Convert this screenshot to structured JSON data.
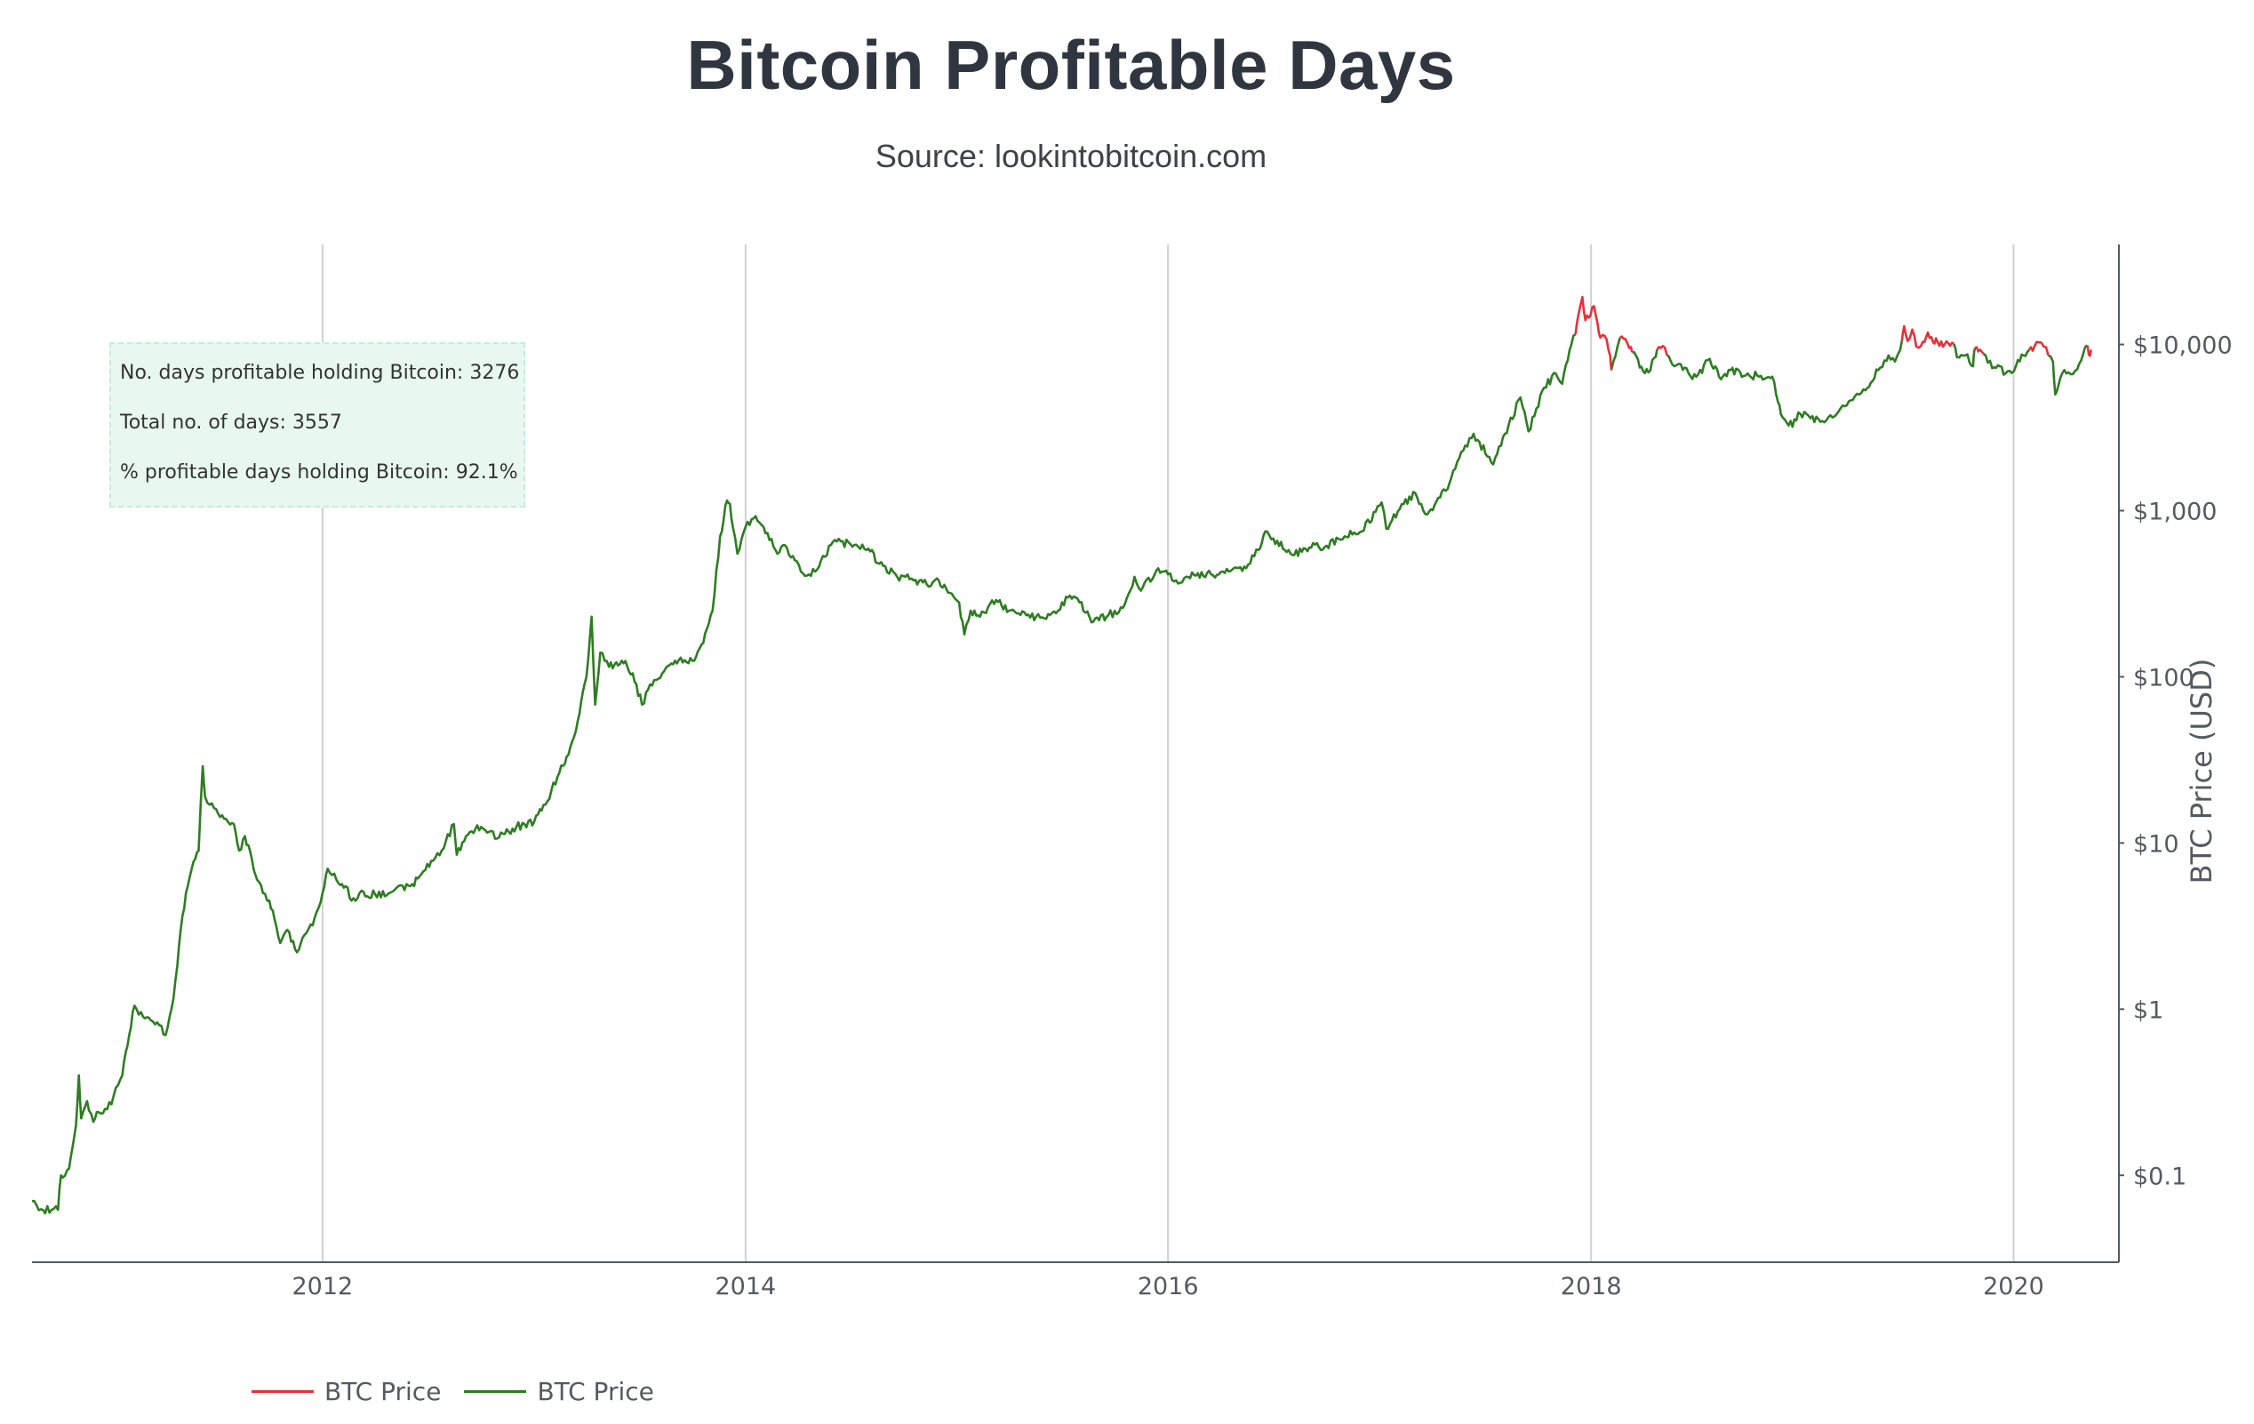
{
  "title": "Bitcoin Profitable Days",
  "subtitle": "Source: lookintobitcoin.com",
  "stats": {
    "line1": "No. days profitable holding Bitcoin: 3276",
    "line2": "Total no. of days: 3557",
    "line3": "% profitable days holding Bitcoin: 92.1%"
  },
  "legend": [
    {
      "label": "BTC Price",
      "color": "#e8303a"
    },
    {
      "label": "BTC Price",
      "color": "#2e7d22"
    }
  ],
  "colors": {
    "profitable": "#2e7d22",
    "unprofitable": "#e8303a",
    "grid": "#d0d0d0",
    "axis": "#555a60",
    "stats_background": "#e8f8f0"
  },
  "chart_data": {
    "type": "line",
    "title": "Bitcoin Profitable Days",
    "subtitle": "Source: lookintobitcoin.com",
    "xlabel": "",
    "ylabel": "BTC Price (USD)",
    "y_scale": "log",
    "y_side": "right",
    "xlim": [
      "2010-08-17",
      "2020-07-01"
    ],
    "ylim": [
      0.03,
      40000
    ],
    "x_ticks": [
      "2012",
      "2014",
      "2016",
      "2018",
      "2020"
    ],
    "x_tick_dates": [
      "2012-01-01",
      "2014-01-01",
      "2016-01-01",
      "2018-01-01",
      "2020-01-01"
    ],
    "y_ticks": [
      0.1,
      1,
      10,
      100,
      1000,
      10000
    ],
    "y_tick_labels": [
      "$0.1",
      "$1",
      "$10",
      "$100",
      "$1,000",
      "$10,000"
    ],
    "grid": "vertical",
    "legend_position": "bottom-left",
    "series": [
      {
        "name": "BTC Price",
        "color": "#e8303a",
        "segments": [
          [
            [
              "2017-12-05",
              11500
            ],
            [
              "2017-12-10",
              15000
            ],
            [
              "2017-12-17",
              19300
            ],
            [
              "2017-12-22",
              14000
            ],
            [
              "2017-12-28",
              14500
            ],
            [
              "2018-01-06",
              17000
            ],
            [
              "2018-01-12",
              13500
            ],
            [
              "2018-01-17",
              11000
            ],
            [
              "2018-01-25",
              11200
            ],
            [
              "2018-02-03",
              8500
            ],
            [
              "2018-02-05",
              7000
            ]
          ],
          [
            [
              "2018-02-20",
              11000
            ],
            [
              "2018-03-01",
              10800
            ],
            [
              "2018-03-08",
              9500
            ],
            [
              "2018-03-13",
              9000
            ]
          ],
          [
            [
              "2018-04-25",
              9300
            ],
            [
              "2018-05-05",
              9800
            ],
            [
              "2018-05-12",
              8600
            ]
          ],
          [
            [
              "2019-06-22",
              10500
            ],
            [
              "2019-06-26",
              12900
            ],
            [
              "2019-07-02",
              10500
            ],
            [
              "2019-07-10",
              12300
            ],
            [
              "2019-07-17",
              9700
            ],
            [
              "2019-07-25",
              9800
            ],
            [
              "2019-08-06",
              11800
            ],
            [
              "2019-08-15",
              10300
            ],
            [
              "2019-08-20",
              10900
            ],
            [
              "2019-09-01",
              9700
            ],
            [
              "2019-09-10",
              10200
            ],
            [
              "2019-09-20",
              10100
            ]
          ],
          [
            [
              "2019-10-26",
              9500
            ],
            [
              "2019-11-04",
              9300
            ],
            [
              "2019-11-10",
              8800
            ]
          ],
          [
            [
              "2020-01-28",
              9300
            ],
            [
              "2020-02-06",
              9700
            ],
            [
              "2020-02-14",
              10300
            ],
            [
              "2020-02-22",
              9700
            ],
            [
              "2020-03-01",
              8600
            ]
          ],
          [
            [
              "2020-05-07",
              9900
            ],
            [
              "2020-05-10",
              8700
            ],
            [
              "2020-05-14",
              9300
            ]
          ]
        ]
      },
      {
        "name": "BTC Price",
        "color": "#2e7d22",
        "points": [
          [
            "2010-08-17",
            0.07
          ],
          [
            "2010-08-25",
            0.066
          ],
          [
            "2010-09-05",
            0.062
          ],
          [
            "2010-09-20",
            0.062
          ],
          [
            "2010-10-01",
            0.062
          ],
          [
            "2010-10-06",
            0.1
          ],
          [
            "2010-10-20",
            0.11
          ],
          [
            "2010-11-01",
            0.2
          ],
          [
            "2010-11-06",
            0.4
          ],
          [
            "2010-11-10",
            0.22
          ],
          [
            "2010-11-20",
            0.28
          ],
          [
            "2010-12-01",
            0.21
          ],
          [
            "2010-12-10",
            0.24
          ],
          [
            "2010-12-25",
            0.25
          ],
          [
            "2011-01-05",
            0.3
          ],
          [
            "2011-01-20",
            0.4
          ],
          [
            "2011-02-01",
            0.7
          ],
          [
            "2011-02-10",
            1.05
          ],
          [
            "2011-02-25",
            0.9
          ],
          [
            "2011-03-10",
            0.86
          ],
          [
            "2011-03-25",
            0.8
          ],
          [
            "2011-04-05",
            0.7
          ],
          [
            "2011-04-15",
            1.0
          ],
          [
            "2011-04-25",
            1.8
          ],
          [
            "2011-05-01",
            3.0
          ],
          [
            "2011-05-10",
            5.0
          ],
          [
            "2011-05-20",
            7.0
          ],
          [
            "2011-06-01",
            9.0
          ],
          [
            "2011-06-08",
            29.0
          ],
          [
            "2011-06-12",
            19.0
          ],
          [
            "2011-06-20",
            17.0
          ],
          [
            "2011-07-01",
            16.0
          ],
          [
            "2011-07-15",
            14.0
          ],
          [
            "2011-08-01",
            13.0
          ],
          [
            "2011-08-10",
            9.0
          ],
          [
            "2011-08-20",
            11.0
          ],
          [
            "2011-09-01",
            8.0
          ],
          [
            "2011-09-10",
            6.0
          ],
          [
            "2011-09-20",
            5.0
          ],
          [
            "2011-10-01",
            4.5
          ],
          [
            "2011-10-10",
            3.5
          ],
          [
            "2011-10-20",
            2.5
          ],
          [
            "2011-11-01",
            3.0
          ],
          [
            "2011-11-18",
            2.2
          ],
          [
            "2011-12-01",
            2.8
          ],
          [
            "2011-12-15",
            3.2
          ],
          [
            "2012-01-01",
            5.0
          ],
          [
            "2012-01-10",
            7.0
          ],
          [
            "2012-01-25",
            6.0
          ],
          [
            "2012-02-10",
            5.5
          ],
          [
            "2012-02-20",
            4.5
          ],
          [
            "2012-03-05",
            5.0
          ],
          [
            "2012-04-01",
            4.9
          ],
          [
            "2012-05-01",
            5.1
          ],
          [
            "2012-06-01",
            5.5
          ],
          [
            "2012-06-20",
            6.5
          ],
          [
            "2012-07-10",
            7.8
          ],
          [
            "2012-07-25",
            9.0
          ],
          [
            "2012-08-15",
            13.0
          ],
          [
            "2012-08-20",
            8.5
          ],
          [
            "2012-09-05",
            11.0
          ],
          [
            "2012-10-01",
            12.5
          ],
          [
            "2012-11-01",
            10.8
          ],
          [
            "2012-12-01",
            12.5
          ],
          [
            "2013-01-01",
            13.5
          ],
          [
            "2013-01-20",
            17.0
          ],
          [
            "2013-02-10",
            25.0
          ],
          [
            "2013-03-01",
            34.0
          ],
          [
            "2013-03-20",
            60.0
          ],
          [
            "2013-04-01",
            100.0
          ],
          [
            "2013-04-10",
            230.0
          ],
          [
            "2013-04-16",
            68.0
          ],
          [
            "2013-04-25",
            140.0
          ],
          [
            "2013-05-10",
            115.0
          ],
          [
            "2013-06-01",
            125.0
          ],
          [
            "2013-06-20",
            105.0
          ],
          [
            "2013-07-06",
            68.0
          ],
          [
            "2013-07-20",
            90.0
          ],
          [
            "2013-08-10",
            105.0
          ],
          [
            "2013-09-01",
            125.0
          ],
          [
            "2013-10-01",
            125.0
          ],
          [
            "2013-10-20",
            160.0
          ],
          [
            "2013-11-05",
            250.0
          ],
          [
            "2013-11-18",
            700.0
          ],
          [
            "2013-11-30",
            1150.0
          ],
          [
            "2013-12-05",
            1100.0
          ],
          [
            "2013-12-10",
            800.0
          ],
          [
            "2013-12-18",
            550.0
          ],
          [
            "2014-01-01",
            800.0
          ],
          [
            "2014-01-15",
            900.0
          ],
          [
            "2014-02-01",
            800.0
          ],
          [
            "2014-02-25",
            550.0
          ],
          [
            "2014-03-10",
            620.0
          ],
          [
            "2014-04-10",
            420.0
          ],
          [
            "2014-05-01",
            430.0
          ],
          [
            "2014-06-01",
            650.0
          ],
          [
            "2014-07-01",
            630.0
          ],
          [
            "2014-08-01",
            590.0
          ],
          [
            "2014-08-20",
            480.0
          ],
          [
            "2014-09-20",
            400.0
          ],
          [
            "2014-10-15",
            390.0
          ],
          [
            "2014-11-10",
            360.0
          ],
          [
            "2014-12-01",
            380.0
          ],
          [
            "2014-12-20",
            320.0
          ],
          [
            "2015-01-05",
            280.0
          ],
          [
            "2015-01-14",
            180.0
          ],
          [
            "2015-01-25",
            250.0
          ],
          [
            "2015-02-10",
            230.0
          ],
          [
            "2015-03-10",
            290.0
          ],
          [
            "2015-04-01",
            250.0
          ],
          [
            "2015-05-01",
            235.0
          ],
          [
            "2015-06-01",
            225.0
          ],
          [
            "2015-06-25",
            250.0
          ],
          [
            "2015-07-12",
            300.0
          ],
          [
            "2015-08-01",
            280.0
          ],
          [
            "2015-08-25",
            215.0
          ],
          [
            "2015-09-20",
            235.0
          ],
          [
            "2015-10-15",
            260.0
          ],
          [
            "2015-11-04",
            400.0
          ],
          [
            "2015-11-15",
            330.0
          ],
          [
            "2015-12-15",
            450.0
          ],
          [
            "2016-01-15",
            380.0
          ],
          [
            "2016-02-15",
            410.0
          ],
          [
            "2016-03-15",
            415.0
          ],
          [
            "2016-04-15",
            430.0
          ],
          [
            "2016-05-15",
            450.0
          ],
          [
            "2016-06-05",
            580.0
          ],
          [
            "2016-06-17",
            750.0
          ],
          [
            "2016-07-01",
            680.0
          ],
          [
            "2016-08-03",
            540.0
          ],
          [
            "2016-09-01",
            600.0
          ],
          [
            "2016-10-01",
            615.0
          ],
          [
            "2016-11-01",
            700.0
          ],
          [
            "2016-12-01",
            750.0
          ],
          [
            "2017-01-04",
            1120.0
          ],
          [
            "2017-01-12",
            780.0
          ],
          [
            "2017-02-01",
            990.0
          ],
          [
            "2017-03-03",
            1280.0
          ],
          [
            "2017-03-24",
            950.0
          ],
          [
            "2017-04-15",
            1200.0
          ],
          [
            "2017-05-01",
            1450.0
          ],
          [
            "2017-05-25",
            2300.0
          ],
          [
            "2017-06-12",
            2900.0
          ],
          [
            "2017-07-16",
            1900.0
          ],
          [
            "2017-08-05",
            2900.0
          ],
          [
            "2017-09-01",
            4800.0
          ],
          [
            "2017-09-15",
            3000.0
          ],
          [
            "2017-10-12",
            5500.0
          ],
          [
            "2017-11-01",
            6700.0
          ],
          [
            "2017-11-12",
            5800.0
          ],
          [
            "2017-11-28",
            10000.0
          ],
          [
            "2017-12-05",
            11500.0
          ]
        ],
        "segments_after_peak": [
          [
            [
              "2018-02-05",
              7000
            ],
            [
              "2018-02-12",
              8500
            ],
            [
              "2018-02-20",
              11000
            ]
          ],
          [
            [
              "2018-03-13",
              9000
            ],
            [
              "2018-03-20",
              8500
            ],
            [
              "2018-04-01",
              6900
            ],
            [
              "2018-04-10",
              6800
            ],
            [
              "2018-04-20",
              8300
            ],
            [
              "2018-04-25",
              9300
            ]
          ],
          [
            [
              "2018-05-12",
              8600
            ],
            [
              "2018-05-25",
              7400
            ],
            [
              "2018-06-05",
              7600
            ],
            [
              "2018-06-25",
              6200
            ],
            [
              "2018-07-05",
              6600
            ],
            [
              "2018-07-25",
              8200
            ],
            [
              "2018-08-10",
              6400
            ],
            [
              "2018-08-30",
              7000
            ],
            [
              "2018-09-25",
              6500
            ],
            [
              "2018-10-15",
              6500
            ],
            [
              "2018-11-10",
              6400
            ],
            [
              "2018-11-20",
              4500
            ],
            [
              "2018-11-25",
              3800
            ],
            [
              "2018-12-15",
              3200
            ],
            [
              "2018-12-25",
              3900
            ],
            [
              "2019-01-15",
              3600
            ],
            [
              "2019-02-08",
              3400
            ],
            [
              "2019-03-01",
              3800
            ],
            [
              "2019-04-02",
              4900
            ],
            [
              "2019-04-20",
              5300
            ],
            [
              "2019-05-12",
              7000
            ],
            [
              "2019-05-30",
              8600
            ],
            [
              "2019-06-10",
              7900
            ],
            [
              "2019-06-22",
              10500
            ]
          ],
          [
            [
              "2019-09-20",
              10100
            ],
            [
              "2019-09-25",
              8400
            ],
            [
              "2019-10-10",
              8600
            ],
            [
              "2019-10-23",
              7400
            ],
            [
              "2019-10-26",
              9500
            ]
          ],
          [
            [
              "2019-11-10",
              8800
            ],
            [
              "2019-11-25",
              7200
            ],
            [
              "2019-12-05",
              7500
            ],
            [
              "2019-12-18",
              6700
            ],
            [
              "2020-01-05",
              7400
            ],
            [
              "2020-01-15",
              8700
            ],
            [
              "2020-01-28",
              9300
            ]
          ],
          [
            [
              "2020-03-01",
              8600
            ],
            [
              "2020-03-09",
              7900
            ],
            [
              "2020-03-13",
              5000
            ],
            [
              "2020-03-25",
              6700
            ],
            [
              "2020-04-05",
              6800
            ],
            [
              "2020-04-20",
              7100
            ],
            [
              "2020-04-30",
              8700
            ],
            [
              "2020-05-07",
              9900
            ]
          ]
        ]
      }
    ]
  }
}
